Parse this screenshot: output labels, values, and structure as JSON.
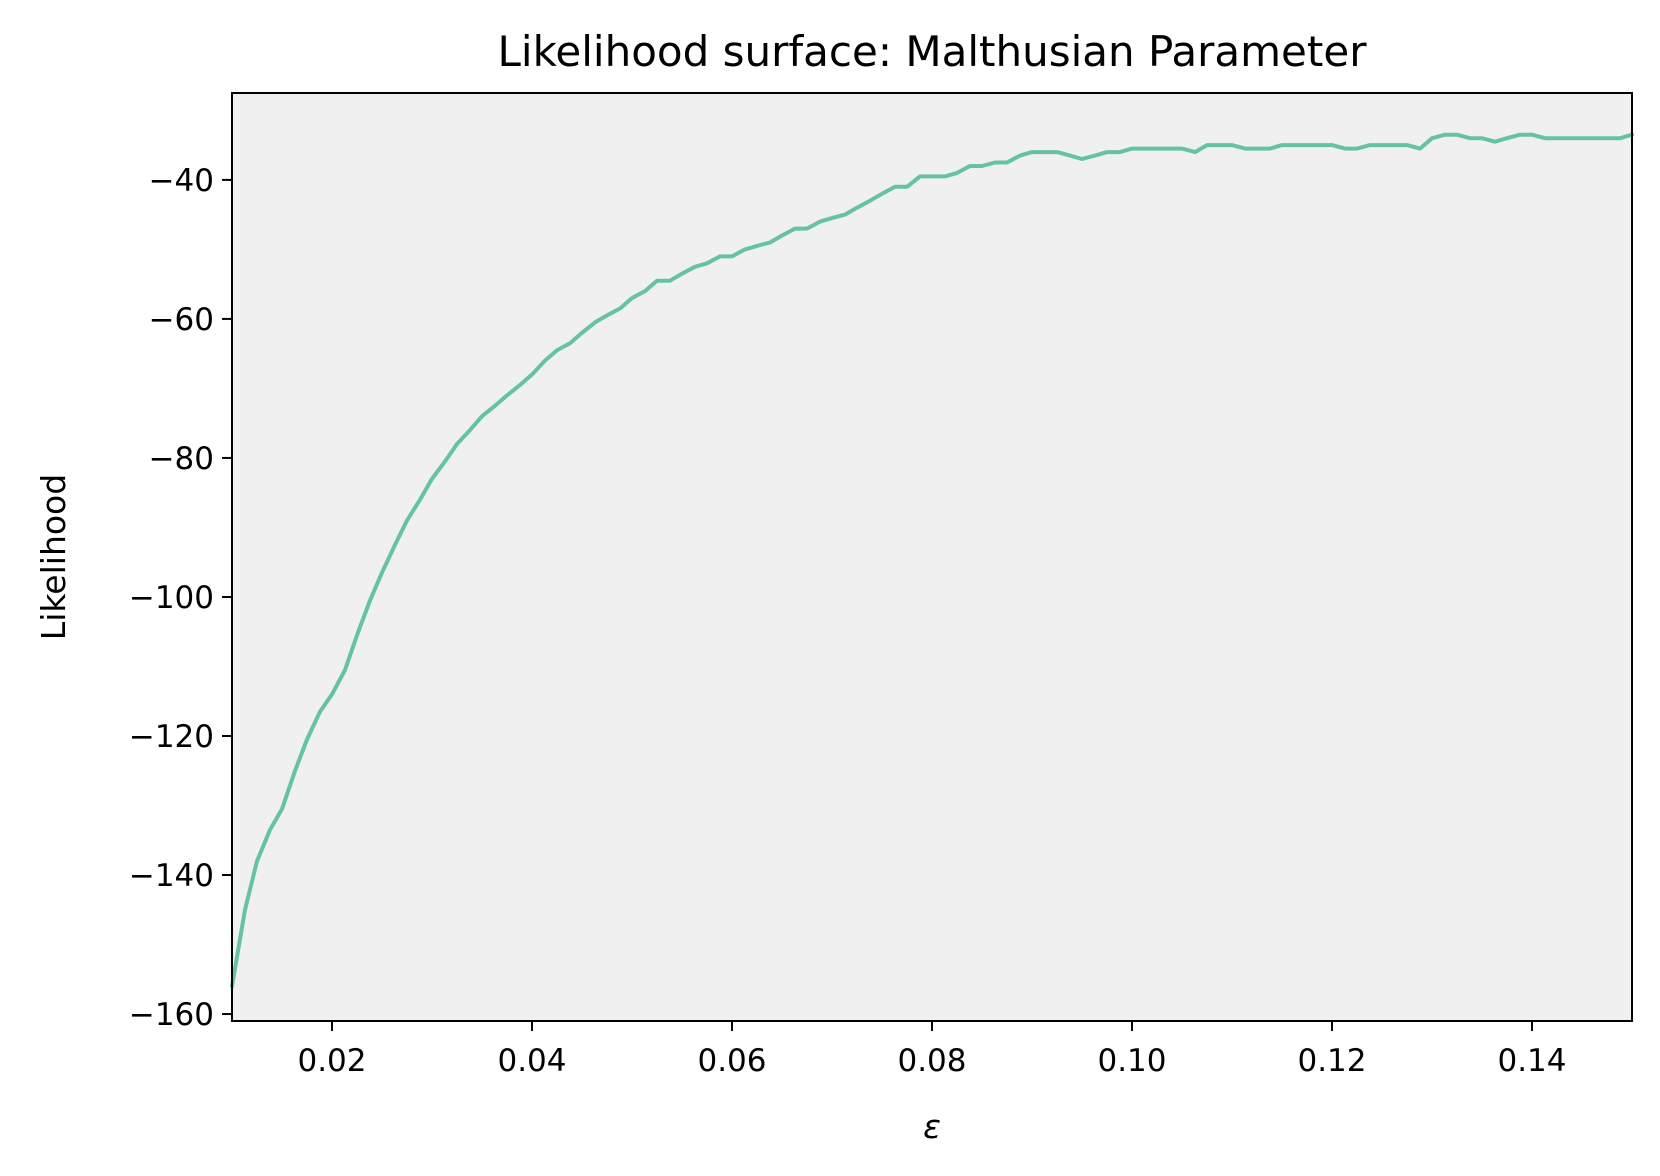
{
  "colors": {
    "line": "#66c2a5",
    "plot_background": "#f0f0f0",
    "axes": "#000000"
  },
  "chart_data": {
    "type": "line",
    "title": "Likelihood surface: Malthusian Parameter",
    "xlabel": "ε",
    "ylabel": "Likelihood",
    "xlim": [
      0.01,
      0.15
    ],
    "ylim": [
      -161,
      -27.5
    ],
    "x_ticks": [
      0.02,
      0.04,
      0.06,
      0.08,
      0.1,
      0.12,
      0.14
    ],
    "x_tick_labels": [
      "0.02",
      "0.04",
      "0.06",
      "0.08",
      "0.10",
      "0.12",
      "0.14"
    ],
    "y_ticks": [
      -40,
      -60,
      -80,
      -100,
      -120,
      -140,
      -160
    ],
    "y_tick_labels": [
      "−40",
      "−60",
      "−80",
      "−100",
      "−120",
      "−140",
      "−160"
    ],
    "grid": false,
    "legend": "none",
    "series": [
      {
        "x": [
          0.01,
          0.0113,
          0.0125,
          0.0138,
          0.015,
          0.0163,
          0.0175,
          0.0188,
          0.02,
          0.0213,
          0.0225,
          0.0238,
          0.025,
          0.0263,
          0.0275,
          0.0288,
          0.03,
          0.0313,
          0.0325,
          0.0338,
          0.035,
          0.0363,
          0.0375,
          0.0388,
          0.04,
          0.0413,
          0.0425,
          0.0438,
          0.045,
          0.0463,
          0.0475,
          0.0488,
          0.05,
          0.0513,
          0.0525,
          0.0538,
          0.055,
          0.0563,
          0.0575,
          0.0588,
          0.06,
          0.0613,
          0.0625,
          0.0638,
          0.065,
          0.0663,
          0.0675,
          0.0688,
          0.07,
          0.0713,
          0.0725,
          0.0738,
          0.075,
          0.0763,
          0.0775,
          0.0788,
          0.08,
          0.0813,
          0.0825,
          0.0838,
          0.085,
          0.0863,
          0.0875,
          0.0888,
          0.09,
          0.0913,
          0.0925,
          0.0938,
          0.095,
          0.0963,
          0.0975,
          0.0988,
          0.1,
          0.1013,
          0.1025,
          0.1038,
          0.105,
          0.1063,
          0.1075,
          0.1088,
          0.11,
          0.1113,
          0.1125,
          0.1138,
          0.115,
          0.1163,
          0.1175,
          0.1188,
          0.12,
          0.1213,
          0.1225,
          0.1238,
          0.125,
          0.1263,
          0.1275,
          0.1288,
          0.13,
          0.1313,
          0.1325,
          0.1338,
          0.135,
          0.1363,
          0.1375,
          0.1388,
          0.14,
          0.1413,
          0.1425,
          0.1438,
          0.145,
          0.1463,
          0.1475,
          0.1488,
          0.15
        ],
        "y": [
          -156,
          -145,
          -138,
          -133.5,
          -130.5,
          -125,
          -120.5,
          -116.5,
          -114,
          -110.5,
          -105.5,
          -100.5,
          -96.5,
          -92.5,
          -89,
          -86,
          -83,
          -80.5,
          -78,
          -76,
          -74,
          -72.5,
          -71,
          -69.5,
          -68,
          -66,
          -64.5,
          -63.5,
          -62,
          -60.5,
          -59.5,
          -58.5,
          -57,
          -56,
          -54.5,
          -54.5,
          -53.5,
          -52.5,
          -52,
          -51,
          -51,
          -50,
          -49.5,
          -49,
          -48,
          -47,
          -47,
          -46,
          -45.5,
          -45,
          -44,
          -43,
          -42,
          -41,
          -41,
          -39.5,
          -39.5,
          -39.5,
          -39,
          -38,
          -38,
          -37.5,
          -37.5,
          -36.5,
          -36,
          -36,
          -36,
          -36.5,
          -37,
          -36.5,
          -36,
          -36,
          -35.5,
          -35.5,
          -35.5,
          -35.5,
          -35.5,
          -36,
          -35,
          -35,
          -35,
          -35.5,
          -35.5,
          -35.5,
          -35,
          -35,
          -35,
          -35,
          -35,
          -35.5,
          -35.5,
          -35,
          -35,
          -35,
          -35,
          -35.5,
          -34,
          -33.5,
          -33.5,
          -34,
          -34,
          -34.5,
          -34,
          -33.5,
          -33.5,
          -34,
          -34,
          -34,
          -34,
          -34,
          -34,
          -34,
          -33.5
        ]
      }
    ]
  }
}
